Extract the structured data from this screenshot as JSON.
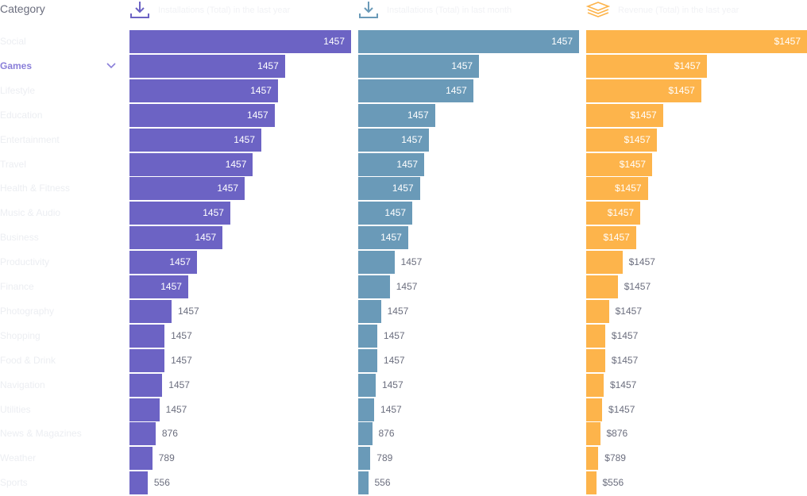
{
  "header": {
    "category_label": "Category",
    "columns": [
      {
        "id": "installs",
        "title": "Installations (Total) in the last year",
        "icon": "download-icon",
        "color": "#6c63c4"
      },
      {
        "id": "installs_last",
        "title": "Installations (Total) in last month",
        "icon": "download-icon",
        "color": "#6a9ab8"
      },
      {
        "id": "revenue",
        "title": "Revenue (Total) in the last year",
        "icon": "stack-icon",
        "color": "#fdb44b"
      }
    ]
  },
  "sidebar": {
    "items": [
      {
        "label": "Social",
        "active": false
      },
      {
        "label": "Games",
        "active": true
      },
      {
        "label": "Lifestyle",
        "active": false
      },
      {
        "label": "Education",
        "active": false
      },
      {
        "label": "Entertainment",
        "active": false
      },
      {
        "label": "Travel",
        "active": false
      },
      {
        "label": "Health & Fitness",
        "active": false
      },
      {
        "label": "Music & Audio",
        "active": false
      },
      {
        "label": "Business",
        "active": false
      },
      {
        "label": "Productivity",
        "active": false
      },
      {
        "label": "Finance",
        "active": false
      },
      {
        "label": "Photography",
        "active": false
      },
      {
        "label": "Shopping",
        "active": false
      },
      {
        "label": "Food & Drink",
        "active": false
      },
      {
        "label": "Navigation",
        "active": false
      },
      {
        "label": "Utilities",
        "active": false
      },
      {
        "label": "News & Magazines",
        "active": false
      },
      {
        "label": "Weather",
        "active": false
      },
      {
        "label": "Sports",
        "active": false
      }
    ]
  },
  "chart_data": [
    {
      "type": "bar",
      "orientation": "horizontal",
      "title": "Installations (Total) in the last year",
      "categories": [
        "Social",
        "Games",
        "Lifestyle",
        "Education",
        "Entertainment",
        "Travel",
        "Health & Fitness",
        "Music & Audio",
        "Business",
        "Productivity",
        "Finance",
        "Photography",
        "Shopping",
        "Food & Drink",
        "Navigation",
        "Utilities",
        "News & Magazines",
        "Weather",
        "Sports"
      ],
      "values": [
        1000,
        702,
        670,
        655,
        595,
        557,
        520,
        455,
        420,
        305,
        265,
        190,
        158,
        158,
        148,
        135,
        118,
        103,
        82
      ],
      "labels": [
        "1457",
        "1457",
        "1457",
        "1457",
        "1457",
        "1457",
        "1457",
        "1457",
        "1457",
        "1457",
        "1457",
        "1457",
        "1457",
        "1457",
        "1457",
        "1457",
        "876",
        "789",
        "556"
      ],
      "xlim": [
        0,
        1000
      ],
      "color": "#6c63c4"
    },
    {
      "type": "bar",
      "orientation": "horizontal",
      "title": "Installations (Total) in last month",
      "categories": [
        "Social",
        "Games",
        "Lifestyle",
        "Education",
        "Entertainment",
        "Travel",
        "Health & Fitness",
        "Music & Audio",
        "Business",
        "Productivity",
        "Finance",
        "Photography",
        "Shopping",
        "Food & Drink",
        "Navigation",
        "Utilities",
        "News & Magazines",
        "Weather",
        "Sports"
      ],
      "values": [
        1000,
        547,
        521,
        348,
        320,
        299,
        279,
        245,
        226,
        164,
        143,
        103,
        86,
        86,
        79,
        72,
        63,
        55,
        45
      ],
      "labels": [
        "1457",
        "1457",
        "1457",
        "1457",
        "1457",
        "1457",
        "1457",
        "1457",
        "1457",
        "1457",
        "1457",
        "1457",
        "1457",
        "1457",
        "1457",
        "1457",
        "876",
        "789",
        "556"
      ],
      "xlim": [
        0,
        1000
      ],
      "color": "#6a9ab8"
    },
    {
      "type": "bar",
      "orientation": "horizontal",
      "title": "Revenue (Total) in the last year",
      "categories": [
        "Social",
        "Games",
        "Lifestyle",
        "Education",
        "Entertainment",
        "Travel",
        "Health & Fitness",
        "Music & Audio",
        "Business",
        "Productivity",
        "Finance",
        "Photography",
        "Shopping",
        "Food & Drink",
        "Navigation",
        "Utilities",
        "News & Magazines",
        "Weather",
        "Sports"
      ],
      "values": [
        1000,
        547,
        521,
        348,
        320,
        299,
        279,
        245,
        226,
        164,
        143,
        103,
        86,
        86,
        79,
        72,
        63,
        55,
        45
      ],
      "labels": [
        "$1457",
        "$1457",
        "$1457",
        "$1457",
        "$1457",
        "$1457",
        "$1457",
        "$1457",
        "$1457",
        "$1457",
        "$1457",
        "$1457",
        "$1457",
        "$1457",
        "$1457",
        "$1457",
        "$876",
        "$789",
        "$556"
      ],
      "xlim": [
        0,
        1000
      ],
      "color": "#fdb44b"
    }
  ]
}
